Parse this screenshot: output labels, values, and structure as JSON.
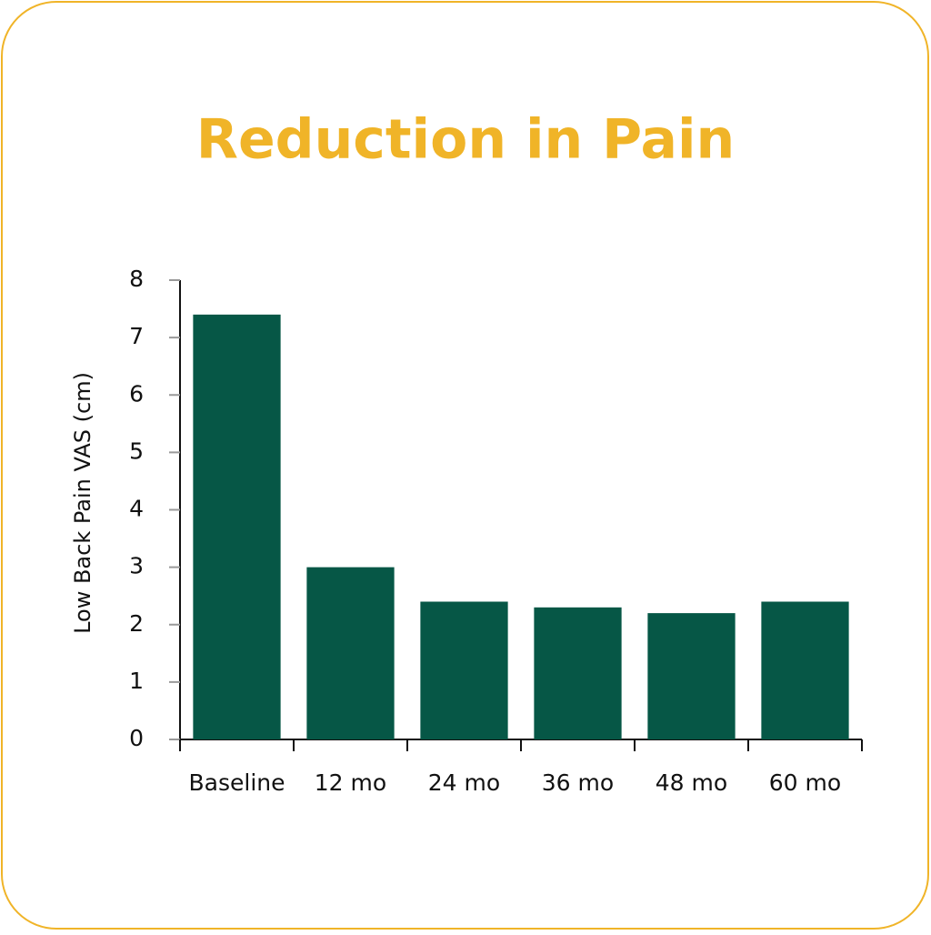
{
  "chart_data": {
    "type": "bar",
    "title": "Reduction in Pain",
    "y_label": "Low Back Pain VAS (cm)",
    "categories": [
      "Baseline",
      "12 mo",
      "24 mo",
      "36 mo",
      "48 mo",
      "60 mo"
    ],
    "values": [
      7.4,
      3.0,
      2.4,
      2.3,
      2.2,
      2.4
    ],
    "color": "#065746",
    "ylim": [
      0,
      8
    ],
    "yticks": [
      0,
      1,
      2,
      3,
      4,
      5,
      6,
      7,
      8
    ],
    "grid": false
  }
}
